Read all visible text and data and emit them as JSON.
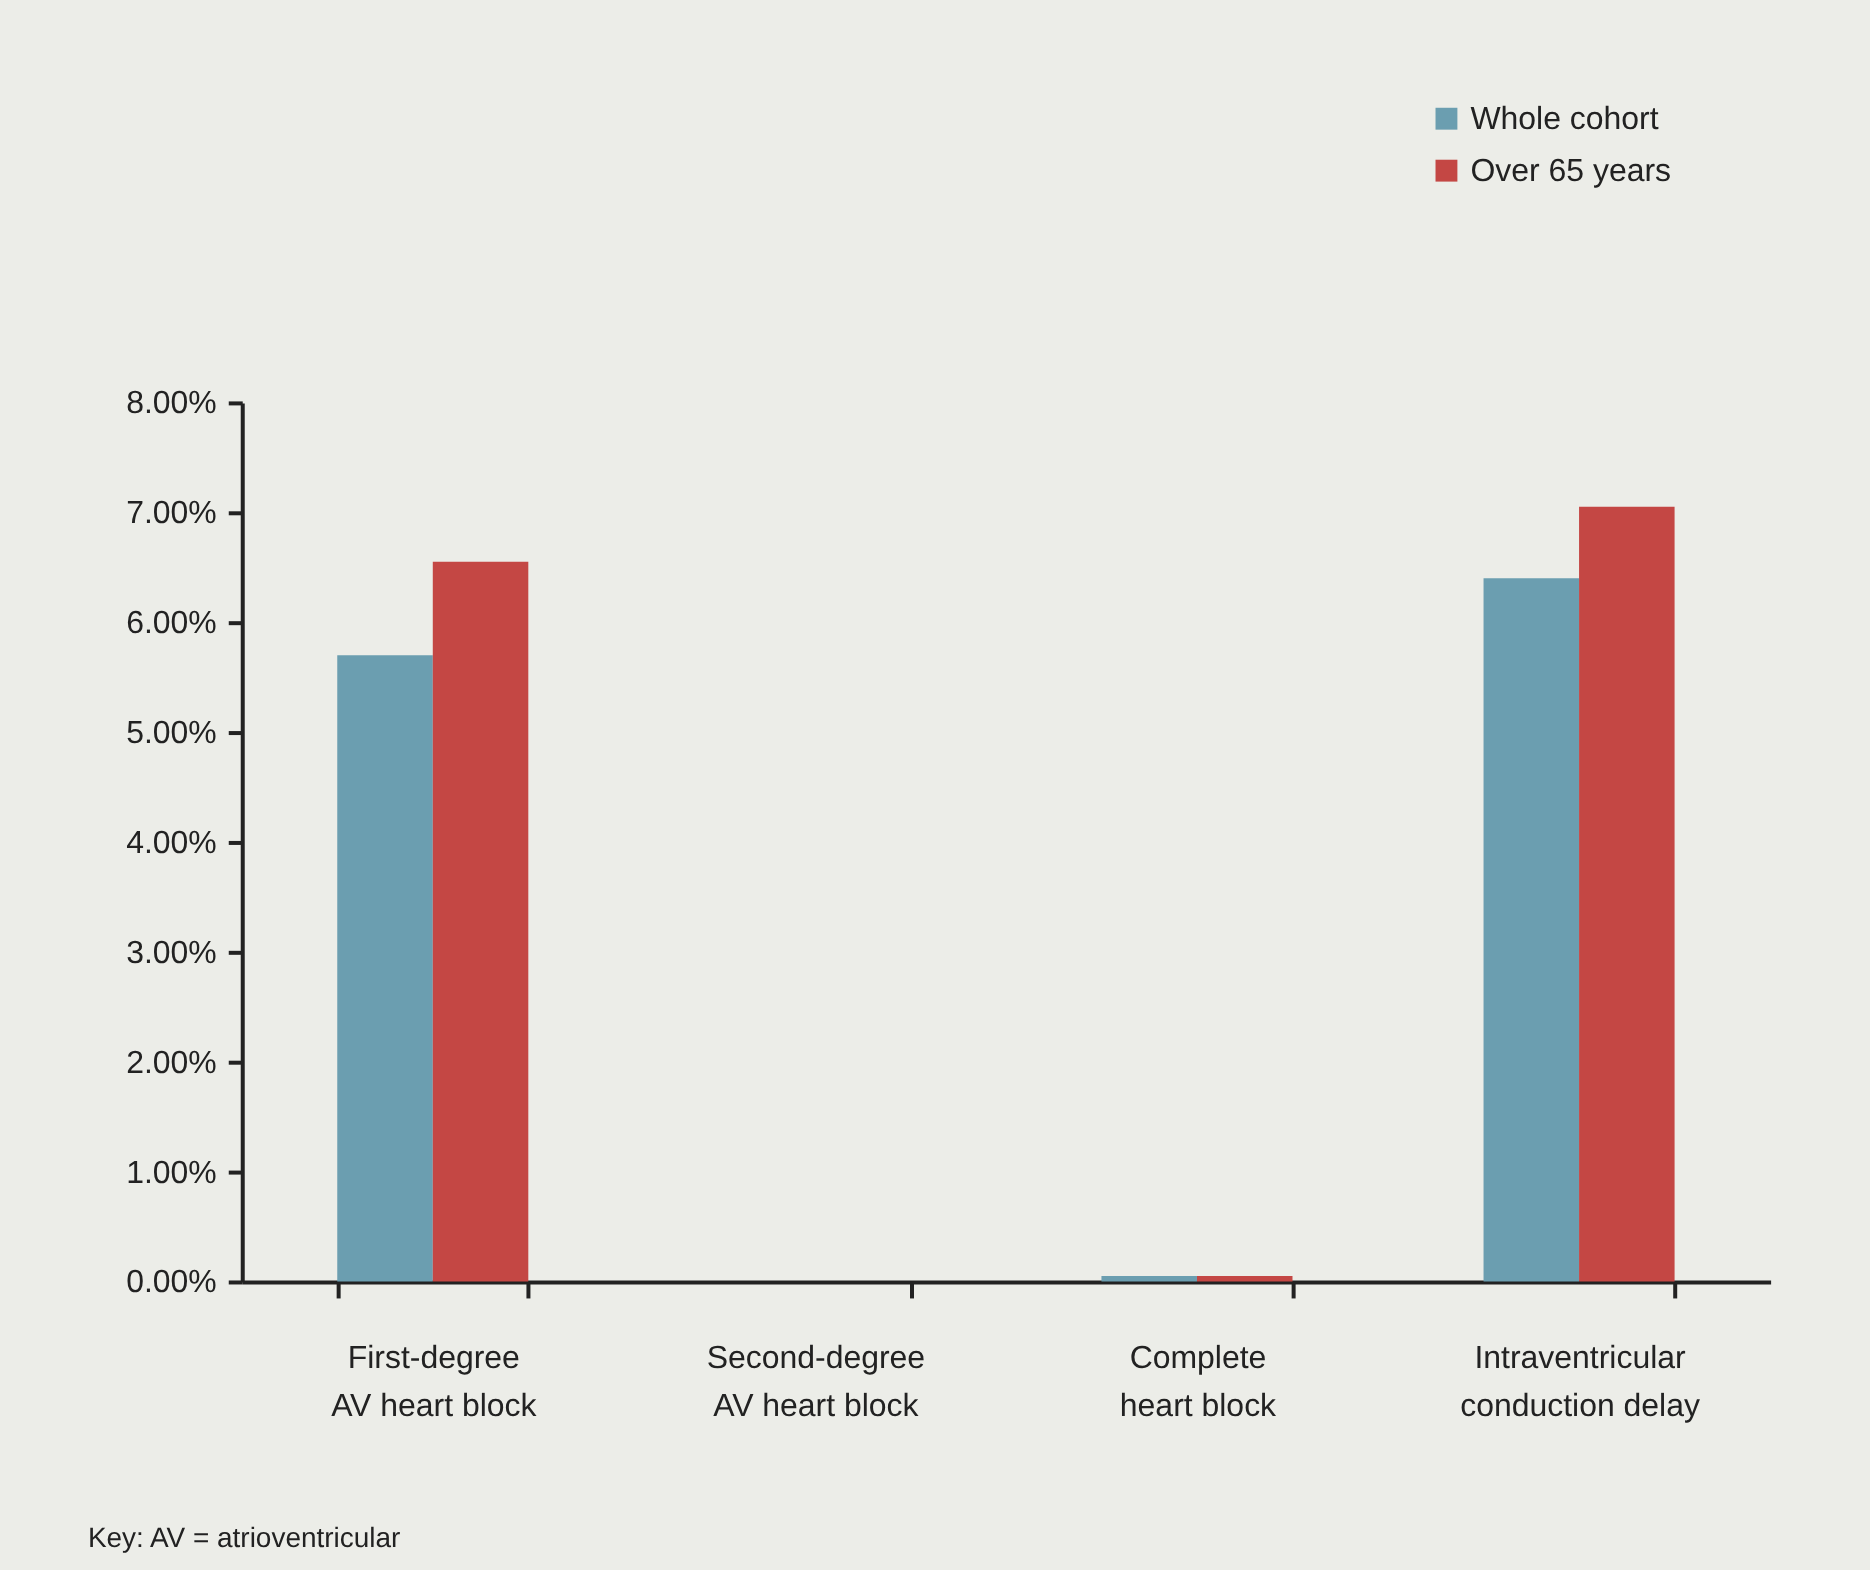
{
  "chart_data": {
    "type": "bar",
    "categories": [
      "First-degree\nAV heart block",
      "Second-degree\nAV heart block",
      "Complete\nheart block",
      "Intraventricular\nconduction delay"
    ],
    "series": [
      {
        "name": "Whole cohort",
        "color": "#6b9eb0",
        "values": [
          5.7,
          0,
          0.05,
          6.4
        ]
      },
      {
        "name": "Over 65 years",
        "color": "#c44744",
        "values": [
          6.55,
          0,
          0.05,
          7.05
        ]
      }
    ],
    "ylim": [
      0,
      8
    ],
    "yticks": [
      {
        "value": 0,
        "label": "0.00%"
      },
      {
        "value": 1,
        "label": "1.00%"
      },
      {
        "value": 2,
        "label": "2.00%"
      },
      {
        "value": 3,
        "label": "3.00%"
      },
      {
        "value": 4,
        "label": "4.00%"
      },
      {
        "value": 5,
        "label": "5.00%"
      },
      {
        "value": 6,
        "label": "6.00%"
      },
      {
        "value": 7,
        "label": "7.00%"
      },
      {
        "value": 8,
        "label": "8.00%"
      }
    ],
    "grid": false,
    "legend": "top right",
    "annotations": [
      "Key: AV = atrioventricular"
    ]
  }
}
